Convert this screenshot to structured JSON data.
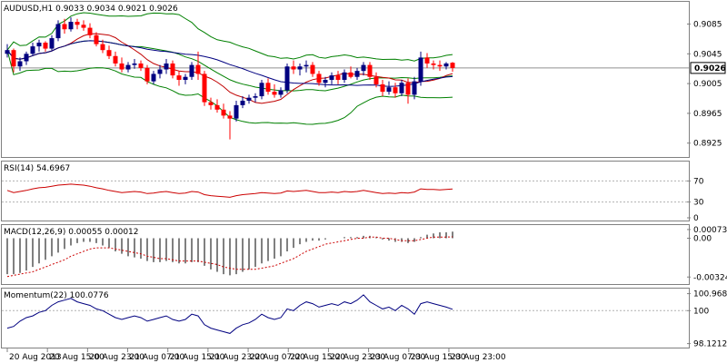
{
  "chart_data": [
    {
      "type": "candlestick",
      "title": "AUDUSD,H1  0.9033 0.9034 0.9021 0.9026",
      "ylim": [
        0.891,
        0.911
      ],
      "y_ticks": [
        "0.9085",
        "0.9045",
        "0.9005",
        "0.8965",
        "0.8925"
      ],
      "y_tick_values": [
        0.9085,
        0.9045,
        0.9005,
        0.8965,
        0.8925
      ],
      "last_price_label": "0.9026",
      "last_price": 0.9026,
      "colors": {
        "up": "#000080",
        "down": "#ff0000",
        "bollinger": "#008000",
        "ma_fast": "#c00000",
        "ma_slow": "#000080"
      },
      "candles": [
        [
          0.9045,
          0.9058,
          0.904,
          0.905
        ],
        [
          0.905,
          0.9052,
          0.902,
          0.9028
        ],
        [
          0.9028,
          0.904,
          0.9022,
          0.9035
        ],
        [
          0.9035,
          0.9048,
          0.903,
          0.9045
        ],
        [
          0.9045,
          0.906,
          0.9042,
          0.9055
        ],
        [
          0.9055,
          0.9064,
          0.9048,
          0.906
        ],
        [
          0.906,
          0.9062,
          0.9048,
          0.9052
        ],
        [
          0.9052,
          0.907,
          0.905,
          0.9066
        ],
        [
          0.9066,
          0.909,
          0.9062,
          0.9085
        ],
        [
          0.9085,
          0.9092,
          0.9072,
          0.9078
        ],
        [
          0.9078,
          0.9094,
          0.9075,
          0.9088
        ],
        [
          0.9088,
          0.9092,
          0.9078,
          0.9084
        ],
        [
          0.9084,
          0.909,
          0.9076,
          0.908
        ],
        [
          0.908,
          0.9086,
          0.9066,
          0.907
        ],
        [
          0.907,
          0.9074,
          0.9055,
          0.9058
        ],
        [
          0.9058,
          0.9064,
          0.9046,
          0.905
        ],
        [
          0.905,
          0.9056,
          0.9038,
          0.9042
        ],
        [
          0.9042,
          0.9048,
          0.9028,
          0.9032
        ],
        [
          0.9032,
          0.904,
          0.902,
          0.9024
        ],
        [
          0.9024,
          0.9034,
          0.902,
          0.903
        ],
        [
          0.903,
          0.9038,
          0.9025,
          0.9032
        ],
        [
          0.9032,
          0.9036,
          0.9022,
          0.9026
        ],
        [
          0.9026,
          0.903,
          0.9004,
          0.9008
        ],
        [
          0.9008,
          0.9022,
          0.9004,
          0.9018
        ],
        [
          0.9018,
          0.903,
          0.9012,
          0.9024
        ],
        [
          0.9024,
          0.9038,
          0.9018,
          0.9032
        ],
        [
          0.9032,
          0.9036,
          0.9012,
          0.9016
        ],
        [
          0.9016,
          0.9022,
          0.9002,
          0.901
        ],
        [
          0.901,
          0.9018,
          0.9004,
          0.9014
        ],
        [
          0.9014,
          0.9034,
          0.901,
          0.903
        ],
        [
          0.903,
          0.9048,
          0.901,
          0.9018
        ],
        [
          0.9018,
          0.9022,
          0.8975,
          0.898
        ],
        [
          0.898,
          0.8986,
          0.897,
          0.8976
        ],
        [
          0.8976,
          0.8984,
          0.8966,
          0.897
        ],
        [
          0.897,
          0.8978,
          0.8958,
          0.8962
        ],
        [
          0.8962,
          0.8968,
          0.893,
          0.8958
        ],
        [
          0.8958,
          0.8982,
          0.8954,
          0.8976
        ],
        [
          0.8976,
          0.8988,
          0.8972,
          0.8982
        ],
        [
          0.8982,
          0.899,
          0.8978,
          0.8986
        ],
        [
          0.8986,
          0.8992,
          0.898,
          0.8988
        ],
        [
          0.8988,
          0.901,
          0.8984,
          0.9006
        ],
        [
          0.9006,
          0.9012,
          0.899,
          0.8994
        ],
        [
          0.8994,
          0.9004,
          0.8986,
          0.899
        ],
        [
          0.899,
          0.9,
          0.8986,
          0.8996
        ],
        [
          0.8996,
          0.9032,
          0.8992,
          0.9028
        ],
        [
          0.9028,
          0.9036,
          0.9018,
          0.9024
        ],
        [
          0.9024,
          0.9032,
          0.9016,
          0.9028
        ],
        [
          0.9028,
          0.9036,
          0.902,
          0.903
        ],
        [
          0.903,
          0.9034,
          0.9014,
          0.9018
        ],
        [
          0.9018,
          0.9022,
          0.9002,
          0.9006
        ],
        [
          0.9006,
          0.9014,
          0.9,
          0.901
        ],
        [
          0.901,
          0.902,
          0.9004,
          0.9016
        ],
        [
          0.9016,
          0.9022,
          0.9004,
          0.901
        ],
        [
          0.901,
          0.9024,
          0.9006,
          0.902
        ],
        [
          0.902,
          0.9028,
          0.9012,
          0.9014
        ],
        [
          0.9014,
          0.9026,
          0.901,
          0.9022
        ],
        [
          0.9022,
          0.9034,
          0.9016,
          0.903
        ],
        [
          0.903,
          0.9034,
          0.901,
          0.9014
        ],
        [
          0.9014,
          0.902,
          0.9,
          0.9004
        ],
        [
          0.9004,
          0.901,
          0.8988,
          0.8994
        ],
        [
          0.8994,
          0.9008,
          0.899,
          0.9
        ],
        [
          0.9,
          0.9006,
          0.8986,
          0.8992
        ],
        [
          0.8992,
          0.901,
          0.8988,
          0.9006
        ],
        [
          0.9006,
          0.9012,
          0.8978,
          0.899
        ],
        [
          0.899,
          0.9014,
          0.8984,
          0.9008
        ],
        [
          0.9008,
          0.9048,
          0.9002,
          0.904
        ],
        [
          0.904,
          0.9046,
          0.9026,
          0.9032
        ],
        [
          0.9032,
          0.9036,
          0.9024,
          0.903
        ],
        [
          0.903,
          0.9036,
          0.9022,
          0.9028
        ],
        [
          0.9028,
          0.9034,
          0.9024,
          0.9032
        ],
        [
          0.9033,
          0.9034,
          0.9021,
          0.9026
        ]
      ]
    },
    {
      "type": "line",
      "title": "RSI(14) 54.6967",
      "ylim": [
        0,
        100
      ],
      "y_ticks": [
        "70",
        "30",
        "0"
      ],
      "y_tick_values": [
        70,
        30,
        0
      ],
      "levels": [
        70,
        30
      ],
      "color": "#cc0000",
      "values": [
        52,
        48,
        50,
        52,
        55,
        57,
        58,
        60,
        62,
        63,
        64,
        63,
        62,
        60,
        57,
        55,
        52,
        50,
        48,
        49,
        50,
        49,
        46,
        47,
        49,
        50,
        48,
        46,
        47,
        50,
        49,
        44,
        42,
        41,
        40,
        39,
        42,
        44,
        45,
        46,
        48,
        47,
        46,
        47,
        51,
        50,
        51,
        52,
        50,
        48,
        48,
        49,
        48,
        50,
        49,
        50,
        52,
        50,
        48,
        46,
        47,
        46,
        48,
        47,
        49,
        55,
        54,
        54,
        53,
        54,
        54.6967
      ]
    },
    {
      "type": "bar",
      "title": "MACD(12,26,9) 0.00055 0.00012",
      "ylim": [
        -0.0036,
        0.0008
      ],
      "y_ticks": [
        "0.00073",
        "0.00",
        "-0.00324"
      ],
      "y_tick_values": [
        0.00073,
        0.0,
        -0.00324
      ],
      "color": "#000000",
      "signal_color": "#cc0000",
      "values": [
        -0.003,
        -0.003,
        -0.0029,
        -0.0027,
        -0.0024,
        -0.0021,
        -0.0018,
        -0.0015,
        -0.0012,
        -0.0009,
        -0.0006,
        -0.0004,
        -0.0003,
        -0.0003,
        -0.0004,
        -0.0006,
        -0.0008,
        -0.0011,
        -0.0013,
        -0.0015,
        -0.0016,
        -0.0017,
        -0.0019,
        -0.002,
        -0.002,
        -0.0019,
        -0.002,
        -0.0021,
        -0.0021,
        -0.002,
        -0.002,
        -0.0023,
        -0.0026,
        -0.0028,
        -0.003,
        -0.0031,
        -0.003,
        -0.0028,
        -0.0026,
        -0.0024,
        -0.0021,
        -0.0019,
        -0.0017,
        -0.0015,
        -0.0011,
        -0.0008,
        -0.0005,
        -0.0003,
        -0.0002,
        -0.0002,
        -0.0001,
        0.0,
        0.0,
        0.0001,
        0.0001,
        0.0001,
        0.0002,
        0.0002,
        0.0001,
        -0.0001,
        -0.0002,
        -0.0003,
        -0.0003,
        -0.0004,
        -0.0003,
        0.0001,
        0.0003,
        0.0004,
        0.0005,
        0.0005,
        0.00055
      ],
      "signal": [
        -0.0032,
        -0.0031,
        -0.003,
        -0.0029,
        -0.0028,
        -0.0026,
        -0.0024,
        -0.0022,
        -0.002,
        -0.0018,
        -0.0015,
        -0.0013,
        -0.0011,
        -0.0009,
        -0.0008,
        -0.0008,
        -0.0008,
        -0.0009,
        -0.001,
        -0.0011,
        -0.0012,
        -0.0013,
        -0.0015,
        -0.0016,
        -0.0017,
        -0.0017,
        -0.0018,
        -0.0019,
        -0.0019,
        -0.0019,
        -0.0019,
        -0.002,
        -0.0021,
        -0.0022,
        -0.0024,
        -0.0025,
        -0.0026,
        -0.0026,
        -0.0026,
        -0.0026,
        -0.0025,
        -0.0024,
        -0.0023,
        -0.0021,
        -0.0019,
        -0.0017,
        -0.0014,
        -0.0011,
        -0.0009,
        -0.0007,
        -0.0005,
        -0.0004,
        -0.0003,
        -0.0002,
        -0.0001,
        0.0,
        0.0,
        0.0001,
        0.0001,
        0.0,
        0.0,
        -0.0001,
        -0.0002,
        -0.0002,
        -0.0002,
        -0.0001,
        0.0,
        0.0001,
        0.0001,
        0.0001,
        0.00012
      ]
    },
    {
      "type": "line",
      "title": "Momentum(22) 100.0776",
      "ylim": [
        98.05,
        101.05
      ],
      "y_ticks": [
        "100.968",
        "100",
        "98.1212"
      ],
      "y_tick_values": [
        100.968,
        100,
        98.1212
      ],
      "levels": [
        100
      ],
      "color": "#000080",
      "values": [
        99.0,
        99.1,
        99.4,
        99.6,
        99.7,
        99.9,
        100.0,
        100.3,
        100.5,
        100.6,
        100.7,
        100.5,
        100.4,
        100.3,
        100.1,
        100.0,
        99.8,
        99.6,
        99.5,
        99.6,
        99.7,
        99.6,
        99.4,
        99.5,
        99.6,
        99.7,
        99.5,
        99.4,
        99.5,
        99.8,
        99.7,
        99.2,
        99.0,
        98.9,
        98.8,
        98.7,
        99.0,
        99.2,
        99.3,
        99.5,
        99.8,
        99.6,
        99.5,
        99.6,
        100.1,
        100.0,
        100.3,
        100.5,
        100.4,
        100.2,
        100.3,
        100.4,
        100.3,
        100.5,
        100.4,
        100.6,
        100.9,
        100.5,
        100.3,
        100.1,
        100.2,
        100.0,
        100.3,
        100.1,
        99.8,
        100.4,
        100.5,
        100.4,
        100.3,
        100.2,
        100.0776
      ]
    }
  ],
  "x_axis_labels": [
    "20 Aug 2013",
    "20 Aug 15:00",
    "20 Aug 23:00",
    "21 Aug 07:00",
    "21 Aug 15:00",
    "21 Aug 23:00",
    "22 Aug 07:00",
    "22 Aug 15:00",
    "22 Aug 23:00",
    "23 Aug 07:00",
    "23 Aug 15:00",
    "23 Aug 23:00"
  ],
  "x_axis_label_bars": [
    0,
    8,
    16,
    24,
    32,
    40,
    48,
    56,
    64,
    72,
    80,
    88
  ]
}
